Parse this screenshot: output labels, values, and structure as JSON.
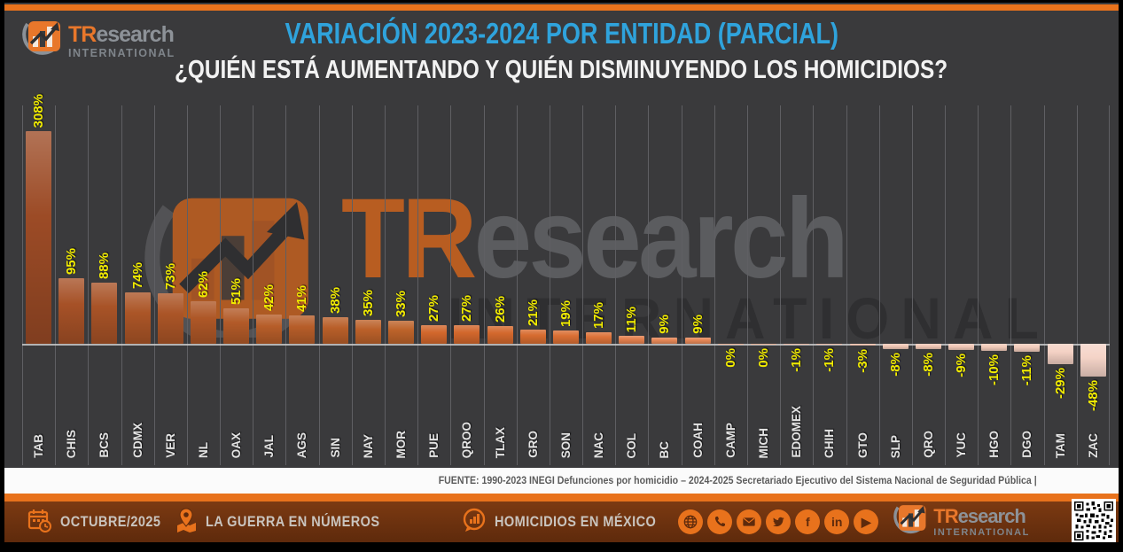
{
  "header": {
    "logo": {
      "brand_tr": "TR",
      "brand_rest": "esearch",
      "subtitle": "INTERNATIONAL"
    },
    "title": "VARIACIÓN 2023-2024 POR ENTIDAD (PARCIAL)",
    "subtitle": "¿QUIÉN ESTÁ AUMENTANDO Y QUIÉN DISMINUYENDO LOS HOMICIDIOS?"
  },
  "watermark": {
    "brand_tr": "TR",
    "brand_rest": "esearch",
    "subtitle": "INTERNATIONAL"
  },
  "chart_data": {
    "type": "bar",
    "title": "VARIACIÓN 2023-2024 POR ENTIDAD (PARCIAL)",
    "unit": "%",
    "categories": [
      "TAB",
      "CHIS",
      "BCS",
      "CDMX",
      "VER",
      "NL",
      "OAX",
      "JAL",
      "AGS",
      "SIN",
      "NAY",
      "MOR",
      "PUE",
      "QROO",
      "TLAX",
      "GRO",
      "SON",
      "NAC",
      "COL",
      "BC",
      "COAH",
      "CAMP",
      "MICH",
      "EDOMEX",
      "CHIH",
      "GTO",
      "SLP",
      "QRO",
      "YUC",
      "HGO",
      "DGO",
      "TAM",
      "ZAC"
    ],
    "values": [
      308,
      95,
      88,
      74,
      73,
      62,
      51,
      42,
      41,
      38,
      35,
      33,
      27,
      27,
      26,
      21,
      19,
      17,
      11,
      9,
      9,
      0,
      0,
      -1,
      -1,
      -3,
      -8,
      -8,
      -9,
      -10,
      -11,
      -29,
      -48
    ],
    "bar_colors": [
      "#9c4b26",
      "#a65127",
      "#a85327",
      "#ab5527",
      "#ab5527",
      "#ae5727",
      "#b25a28",
      "#b65d29",
      "#b65d29",
      "#b95f29",
      "#bb612a",
      "#bd632a",
      "#d2672c",
      "#d2672c",
      "#d3682d",
      "#d76c30",
      "#da6f34",
      "#dd7339",
      "#e3804e",
      "#e58757",
      "#e58757",
      "#eeb69c",
      "#eeb69c",
      "#f0c0ab",
      "#f0c0ab",
      "#f1c5b2",
      "#f2c9b7",
      "#f2c9b7",
      "#f3cab9",
      "#f3ccbb",
      "#f3cdbd",
      "#f4d1c4",
      "#f5d4c8"
    ],
    "ylim": [
      -60,
      320
    ],
    "grid": "vertical",
    "value_label_color": "#f2ec00",
    "category_label_color": "#e4e4e4",
    "legend": "none"
  },
  "source": {
    "text": "FUENTE: 1990-2023 INEGI Defunciones por homicidio – 2024-2025 Secretariado Ejecutivo del Sistema Nacional de Seguridad Pública |"
  },
  "footer": {
    "date": "OCTUBRE/2025",
    "tagline": "LA GUERRA EN NÚMEROS",
    "topic": "HOMICIDIOS EN MÉXICO",
    "social_icons": [
      "globe",
      "phone",
      "mail",
      "twitter",
      "facebook",
      "linkedin",
      "youtube"
    ],
    "logo": {
      "brand_tr": "TR",
      "brand_rest": "esearch",
      "subtitle": "INTERNATIONAL"
    },
    "colors": {
      "bar_background": "#6d3310",
      "accent_strip": "#e8721c"
    }
  }
}
